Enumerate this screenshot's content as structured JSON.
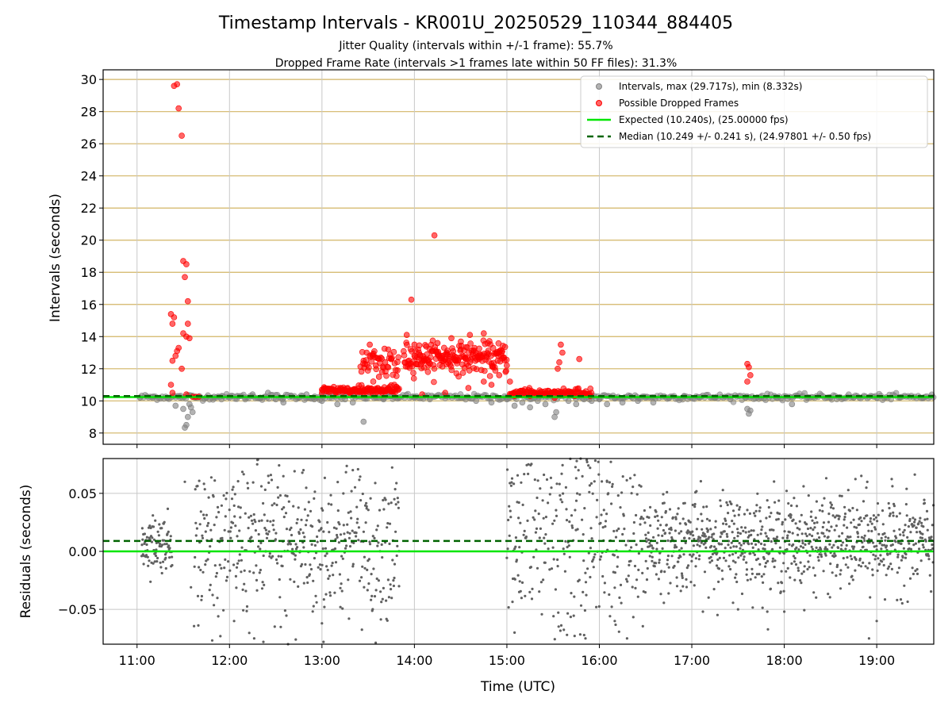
{
  "figure": {
    "title": "Timestamp Intervals - KR001U_20250529_110344_884405",
    "subtitle_1": "Jitter Quality (intervals within +/-1 frame): 55.7%",
    "subtitle_2": "Dropped Frame Rate (intervals >1 frames late within 50 FF files): 31.3%",
    "xlabel": "Time (UTC)"
  },
  "colors": {
    "intervals": "#808080",
    "dropped": "#ff0000",
    "expected": "#00e600",
    "median": "#006400",
    "hgrid_top": "#d2b464",
    "grid": "#c8c8c8",
    "residuals": "#606060"
  },
  "chart_data": [
    {
      "type": "scatter",
      "ylabel": "Intervals (seconds)",
      "xlim": [
        "10:38",
        "19:37"
      ],
      "ylim": [
        7.3,
        30.6
      ],
      "x_ticks": [
        "11:00",
        "12:00",
        "13:00",
        "14:00",
        "15:00",
        "16:00",
        "17:00",
        "18:00",
        "19:00"
      ],
      "y_ticks": [
        8,
        10,
        12,
        14,
        16,
        18,
        20,
        22,
        24,
        26,
        28,
        30
      ],
      "grid": "on",
      "legend_position": "top-right",
      "legend": [
        "Intervals, max (29.717s), min (8.332s)",
        "Possible Dropped Frames",
        "Expected (10.240s), (25.00000 fps)",
        "Median (10.249 +/- 0.241 s), (24.97801 +/- 0.50 fps)"
      ],
      "expected_line": 10.24,
      "median_line": 10.249,
      "series": [
        {
          "name": "Intervals, max (29.717s), min (8.332s)",
          "points": [
            [
              "11:02",
              10.2
            ],
            [
              "11:10",
              10.2
            ],
            [
              "11:20",
              10.2
            ],
            [
              "11:25",
              9.7
            ],
            [
              "11:28",
              10.2
            ],
            [
              "11:30",
              9.5
            ],
            [
              "11:31",
              8.33
            ],
            [
              "11:32",
              8.5
            ],
            [
              "11:33",
              9.0
            ],
            [
              "11:34",
              9.8
            ],
            [
              "11:35",
              9.6
            ],
            [
              "11:36",
              9.3
            ],
            [
              "11:38",
              10.2
            ],
            [
              "11:45",
              10.2
            ],
            [
              "11:50",
              10.25
            ],
            [
              "11:55",
              10.3
            ],
            [
              "12:00",
              10.2
            ],
            [
              "12:05",
              10.3
            ],
            [
              "12:10",
              10.2
            ],
            [
              "12:15",
              10.4
            ],
            [
              "12:20",
              10.2
            ],
            [
              "12:25",
              10.5
            ],
            [
              "12:30",
              10.1
            ],
            [
              "12:35",
              9.9
            ],
            [
              "12:40",
              10.3
            ],
            [
              "12:45",
              10.2
            ],
            [
              "12:50",
              10.4
            ],
            [
              "12:55",
              10.1
            ],
            [
              "13:00",
              10.0
            ],
            [
              "13:05",
              10.2
            ],
            [
              "13:10",
              9.8
            ],
            [
              "13:15",
              10.1
            ],
            [
              "13:20",
              9.9
            ],
            [
              "13:27",
              8.7
            ],
            [
              "13:35",
              10.2
            ],
            [
              "13:40",
              10.1
            ],
            [
              "13:45",
              10.3
            ],
            [
              "13:50",
              10.2
            ],
            [
              "14:00",
              10.2
            ],
            [
              "14:10",
              10.1
            ],
            [
              "14:20",
              10.3
            ],
            [
              "14:30",
              10.2
            ],
            [
              "14:40",
              10.0
            ],
            [
              "14:50",
              9.9
            ],
            [
              "15:00",
              10.1
            ],
            [
              "15:05",
              9.7
            ],
            [
              "15:10",
              9.9
            ],
            [
              "15:15",
              9.6
            ],
            [
              "15:20",
              10.0
            ],
            [
              "15:25",
              9.8
            ],
            [
              "15:31",
              9.0
            ],
            [
              "15:32",
              9.3
            ],
            [
              "15:40",
              10.0
            ],
            [
              "15:45",
              9.8
            ],
            [
              "15:50",
              10.1
            ],
            [
              "15:55",
              10.0
            ],
            [
              "16:00",
              10.1
            ],
            [
              "16:05",
              9.8
            ],
            [
              "16:10",
              10.2
            ],
            [
              "16:15",
              9.9
            ],
            [
              "16:20",
              10.3
            ],
            [
              "16:25",
              10.0
            ],
            [
              "16:30",
              10.2
            ],
            [
              "16:35",
              9.9
            ],
            [
              "16:45",
              10.2
            ],
            [
              "16:55",
              10.3
            ],
            [
              "17:05",
              10.2
            ],
            [
              "17:15",
              10.2
            ],
            [
              "17:25",
              10.1
            ],
            [
              "17:35",
              10.2
            ],
            [
              "17:36",
              9.5
            ],
            [
              "17:37",
              9.2
            ],
            [
              "17:38",
              9.4
            ],
            [
              "17:45",
              10.2
            ],
            [
              "17:55",
              10.2
            ],
            [
              "18:05",
              9.8
            ],
            [
              "18:15",
              10.2
            ],
            [
              "18:30",
              10.2
            ],
            [
              "18:45",
              10.2
            ],
            [
              "19:00",
              10.2
            ],
            [
              "19:15",
              10.2
            ],
            [
              "19:30",
              10.2
            ]
          ]
        },
        {
          "name": "Possible Dropped Frames",
          "points": [
            [
              "11:24",
              29.6
            ],
            [
              "11:26",
              29.7
            ],
            [
              "11:27",
              28.2
            ],
            [
              "11:29",
              26.5
            ],
            [
              "11:30",
              18.7
            ],
            [
              "11:32",
              18.5
            ],
            [
              "11:31",
              17.7
            ],
            [
              "11:33",
              16.2
            ],
            [
              "11:22",
              15.4
            ],
            [
              "11:24",
              15.2
            ],
            [
              "11:23",
              14.8
            ],
            [
              "11:33",
              14.8
            ],
            [
              "11:30",
              14.2
            ],
            [
              "11:32",
              14.0
            ],
            [
              "11:34",
              13.9
            ],
            [
              "11:27",
              13.3
            ],
            [
              "11:26",
              13.1
            ],
            [
              "11:25",
              12.8
            ],
            [
              "11:23",
              12.5
            ],
            [
              "11:29",
              12.0
            ],
            [
              "11:22",
              11.0
            ],
            [
              "11:23",
              10.5
            ],
            [
              "11:32",
              10.4
            ],
            [
              "11:36",
              10.25
            ],
            [
              "11:38",
              10.25
            ],
            [
              "11:40",
              10.25
            ],
            [
              "13:00",
              10.5
            ],
            [
              "13:03",
              10.6
            ],
            [
              "13:06",
              10.7
            ],
            [
              "13:09",
              10.5
            ],
            [
              "13:12",
              10.8
            ],
            [
              "13:15",
              10.6
            ],
            [
              "13:18",
              10.5
            ],
            [
              "13:21",
              10.7
            ],
            [
              "13:24",
              10.6
            ],
            [
              "13:27",
              10.5
            ],
            [
              "13:30",
              10.8
            ],
            [
              "13:33",
              10.4
            ],
            [
              "13:36",
              10.6
            ],
            [
              "13:39",
              10.5
            ],
            [
              "13:42",
              10.7
            ],
            [
              "13:45",
              10.6
            ],
            [
              "13:27",
              12.5
            ],
            [
              "13:29",
              13.0
            ],
            [
              "13:31",
              13.5
            ],
            [
              "13:33",
              12.8
            ],
            [
              "13:35",
              12.2
            ],
            [
              "13:37",
              11.5
            ],
            [
              "13:39",
              11.8
            ],
            [
              "13:41",
              12.4
            ],
            [
              "13:43",
              13.2
            ],
            [
              "13:45",
              12.6
            ],
            [
              "13:47",
              11.0
            ],
            [
              "13:49",
              11.9
            ],
            [
              "13:55",
              14.1
            ],
            [
              "13:58",
              16.3
            ],
            [
              "14:00",
              13.5
            ],
            [
              "14:03",
              13.0
            ],
            [
              "14:06",
              12.6
            ],
            [
              "14:09",
              12.2
            ],
            [
              "14:12",
              13.1
            ],
            [
              "14:13",
              20.3
            ],
            [
              "14:15",
              13.6
            ],
            [
              "14:18",
              12.8
            ],
            [
              "14:21",
              13.0
            ],
            [
              "14:24",
              13.9
            ],
            [
              "14:27",
              12.5
            ],
            [
              "14:30",
              13.2
            ],
            [
              "14:33",
              12.7
            ],
            [
              "14:36",
              14.1
            ],
            [
              "14:39",
              13.3
            ],
            [
              "14:42",
              12.6
            ],
            [
              "14:45",
              14.2
            ],
            [
              "14:48",
              12.9
            ],
            [
              "14:51",
              12.1
            ],
            [
              "14:54",
              12.5
            ],
            [
              "14:57",
              13.1
            ],
            [
              "15:00",
              12.2
            ],
            [
              "14:05",
              10.4
            ],
            [
              "14:20",
              10.5
            ],
            [
              "14:35",
              10.8
            ],
            [
              "14:45",
              11.2
            ],
            [
              "14:50",
              11.0
            ],
            [
              "14:55",
              11.6
            ],
            [
              "15:02",
              11.2
            ],
            [
              "15:05",
              10.3
            ],
            [
              "15:10",
              10.4
            ],
            [
              "15:15",
              10.3
            ],
            [
              "15:20",
              10.5
            ],
            [
              "15:25",
              10.6
            ],
            [
              "15:28",
              10.4
            ],
            [
              "15:31",
              10.2
            ],
            [
              "15:33",
              12.0
            ],
            [
              "15:34",
              12.4
            ],
            [
              "15:35",
              13.5
            ],
            [
              "15:36",
              13.0
            ],
            [
              "15:40",
              10.6
            ],
            [
              "15:44",
              10.3
            ],
            [
              "15:47",
              12.6
            ],
            [
              "15:50",
              10.5
            ],
            [
              "15:54",
              10.3
            ],
            [
              "17:36",
              12.3
            ],
            [
              "17:37",
              12.1
            ],
            [
              "17:38",
              11.6
            ],
            [
              "17:36",
              11.2
            ]
          ]
        },
        {
          "name": "Expected (10.240s), (25.00000 fps)",
          "line": 10.24
        },
        {
          "name": "Median (10.249 +/- 0.241 s), (24.97801 +/- 0.50 fps)",
          "line": 10.249
        }
      ]
    },
    {
      "type": "scatter",
      "ylabel": "Residuals (seconds)",
      "xlim": [
        "10:38",
        "19:37"
      ],
      "ylim": [
        -0.08,
        0.08
      ],
      "x_ticks": [
        "11:00",
        "12:00",
        "13:00",
        "14:00",
        "15:00",
        "16:00",
        "17:00",
        "18:00",
        "19:00"
      ],
      "y_ticks": [
        {
          "value": 0.05,
          "label": "0.05"
        },
        {
          "value": 0.0,
          "label": "0.00"
        },
        {
          "value": -0.05,
          "label": "−0.05"
        }
      ],
      "grid": "on",
      "zero_line": 0.0,
      "median_offset": 0.009,
      "series": [
        {
          "name": "",
          "segments": [
            {
              "start": "11:03",
              "end": "11:23",
              "spread": 0.012
            },
            {
              "start": "11:37",
              "end": "13:50",
              "spread": 0.035
            },
            {
              "start": "15:00",
              "end": "16:30",
              "spread": 0.05
            },
            {
              "start": "16:30",
              "end": "19:37",
              "spread": 0.02
            }
          ],
          "outliers": [
            [
              "11:31",
              0.06
            ],
            [
              "11:35",
              -0.031
            ],
            [
              "12:03",
              -0.06
            ],
            [
              "12:16",
              -0.075
            ],
            [
              "12:22",
              -0.078
            ],
            [
              "12:38",
              -0.08
            ],
            [
              "12:43",
              -0.076
            ],
            [
              "13:01",
              -0.078
            ],
            [
              "13:00",
              -0.062
            ],
            [
              "13:12",
              -0.048
            ],
            [
              "13:29",
              0.037
            ],
            [
              "13:47",
              0.045
            ],
            [
              "13:50",
              -0.03
            ],
            [
              "13:20",
              0.07
            ],
            [
              "12:48",
              0.07
            ],
            [
              "12:18",
              0.075
            ],
            [
              "15:05",
              -0.07
            ],
            [
              "15:08",
              -0.035
            ],
            [
              "15:14",
              0.075
            ],
            [
              "15:24",
              0.066
            ],
            [
              "15:39",
              -0.072
            ],
            [
              "15:45",
              0.063
            ],
            [
              "15:51",
              -0.075
            ],
            [
              "15:54",
              0.072
            ],
            [
              "15:58",
              -0.048
            ],
            [
              "16:05",
              0.06
            ],
            [
              "16:10",
              -0.06
            ],
            [
              "16:18",
              -0.075
            ],
            [
              "16:33",
              0.038
            ],
            [
              "17:27",
              0.035
            ],
            [
              "17:30",
              -0.05
            ],
            [
              "17:49",
              -0.052
            ],
            [
              "18:00",
              -0.052
            ],
            [
              "18:21",
              0.043
            ],
            [
              "18:30",
              0.042
            ],
            [
              "18:50",
              0.065
            ],
            [
              "18:55",
              -0.075
            ],
            [
              "19:00",
              -0.06
            ]
          ]
        }
      ]
    }
  ]
}
